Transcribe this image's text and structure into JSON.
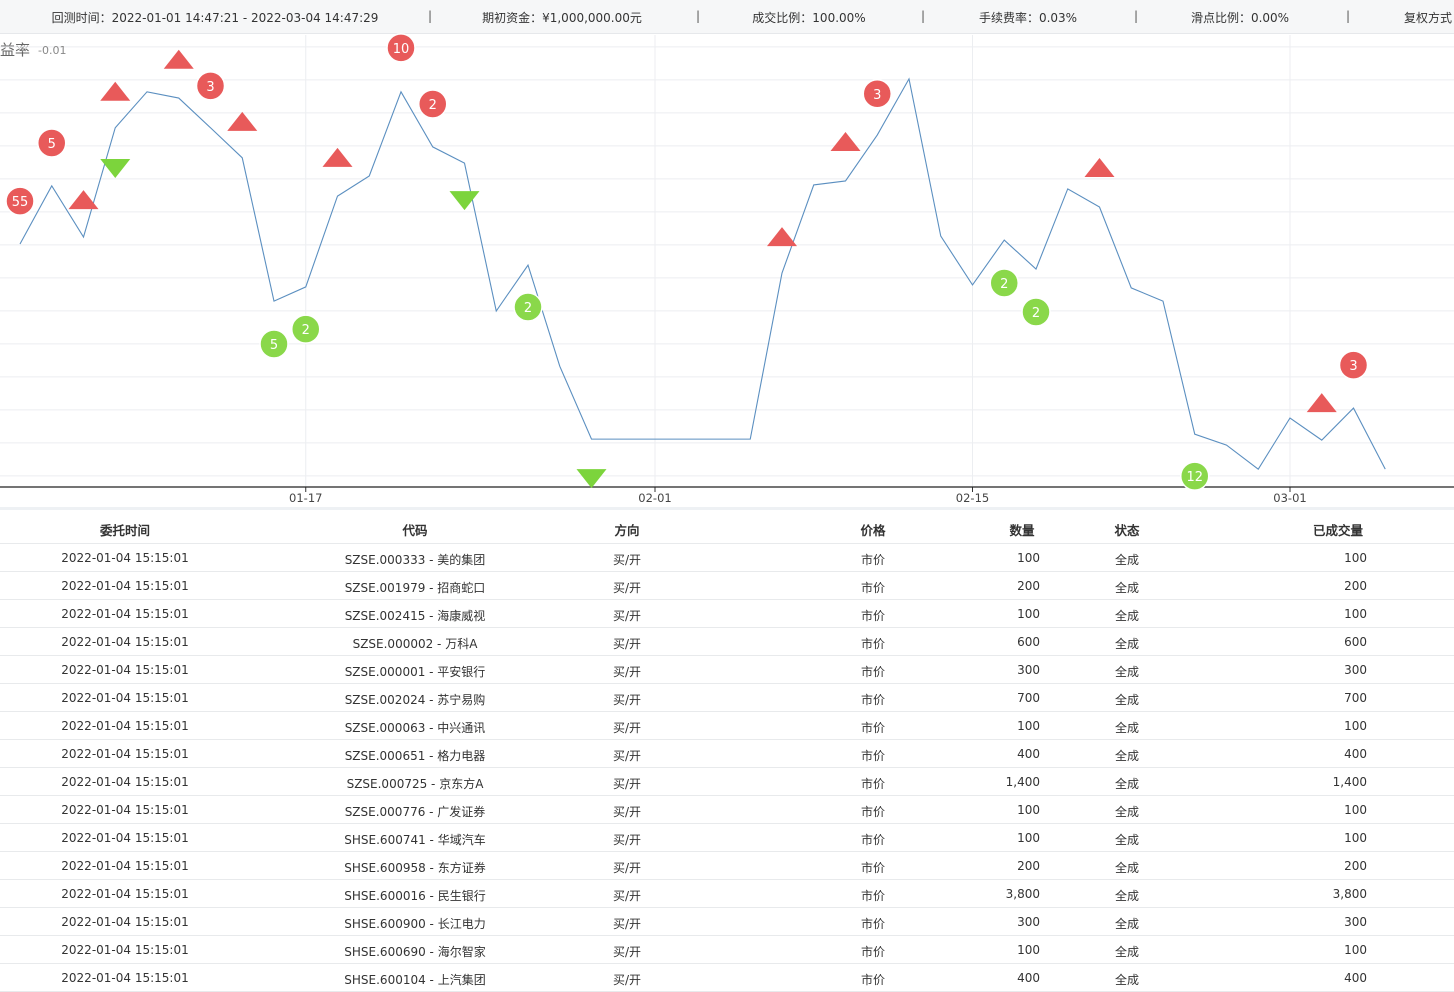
{
  "header": {
    "items": [
      "回测时间：2022-01-01 14:47:21 - 2022-03-04 14:47:29",
      "期初资金：¥1,000,000.00元",
      "成交比例：100.00%",
      "手续费率：0.03%",
      "滑点比例：0.00%",
      "复权方式"
    ]
  },
  "chart_data": {
    "type": "line",
    "y_label": "益率",
    "categories": [
      null,
      null,
      null,
      null,
      null,
      null,
      null,
      null,
      null,
      "01-17",
      null,
      null,
      null,
      null,
      null,
      null,
      null,
      null,
      null,
      null,
      "02-01",
      null,
      null,
      null,
      null,
      null,
      null,
      null,
      null,
      null,
      "02-15",
      null,
      null,
      null,
      null,
      null,
      null,
      null,
      null,
      null,
      "03-01",
      null,
      null,
      null
    ],
    "series": [
      {
        "color": "#5b8fc0",
        "values": [
          -0.01597,
          -0.01421,
          -0.01576,
          -0.01245,
          -0.01136,
          -0.01155,
          -0.01245,
          -0.01336,
          -0.0177,
          -0.01727,
          -0.01452,
          -0.01391,
          -0.01136,
          -0.01303,
          -0.01352,
          -0.018,
          -0.01661,
          -0.01967,
          -0.02188,
          -0.02188,
          -0.02188,
          -0.02188,
          -0.02188,
          -0.02188,
          -0.01685,
          -0.01418,
          -0.01406,
          -0.01267,
          -0.01097,
          -0.01573,
          -0.01721,
          -0.01585,
          -0.01673,
          -0.0143,
          -0.01485,
          -0.0173,
          -0.0177,
          -0.02173,
          -0.02206,
          -0.02279,
          -0.02124,
          -0.02191,
          -0.02094,
          -0.02279
        ]
      }
    ],
    "ylim": [
      -0.02333,
      -0.00964
    ],
    "yticks": [
      -0.01
    ],
    "markers": [
      {
        "x": 0,
        "y": -0.01467,
        "shape": "circle",
        "color": "#e85a5a",
        "label": "55"
      },
      {
        "x": 1,
        "y": -0.01291,
        "shape": "circle",
        "color": "#e85a5a",
        "label": "5"
      },
      {
        "x": 6,
        "y": -0.01118,
        "shape": "circle",
        "color": "#e85a5a",
        "label": "3"
      },
      {
        "x": 12,
        "y": -0.01003,
        "shape": "circle",
        "color": "#e85a5a",
        "label": "10"
      },
      {
        "x": 13,
        "y": -0.01173,
        "shape": "circle",
        "color": "#e85a5a",
        "label": "2"
      },
      {
        "x": 27,
        "y": -0.01142,
        "shape": "circle",
        "color": "#e85a5a",
        "label": "3"
      },
      {
        "x": 42,
        "y": -0.01964,
        "shape": "circle",
        "color": "#e85a5a",
        "label": "3"
      },
      {
        "x": 8,
        "y": -0.019,
        "shape": "circle",
        "color": "#8ad84a",
        "label": "5"
      },
      {
        "x": 9,
        "y": -0.01855,
        "shape": "circle",
        "color": "#8ad84a",
        "label": "2"
      },
      {
        "x": 16,
        "y": -0.01788,
        "shape": "circle",
        "color": "#8ad84a",
        "label": "2"
      },
      {
        "x": 31,
        "y": -0.01715,
        "shape": "circle",
        "color": "#8ad84a",
        "label": "2"
      },
      {
        "x": 32,
        "y": -0.01803,
        "shape": "circle",
        "color": "#8ad84a",
        "label": "2"
      },
      {
        "x": 37,
        "y": -0.023,
        "shape": "circle",
        "color": "#8ad84a",
        "label": "12"
      },
      {
        "x": 2,
        "y": -0.01464,
        "shape": "up",
        "color": "#e85a5a"
      },
      {
        "x": 3,
        "y": -0.01136,
        "shape": "up",
        "color": "#e85a5a"
      },
      {
        "x": 5,
        "y": -0.01039,
        "shape": "up",
        "color": "#e85a5a"
      },
      {
        "x": 7,
        "y": -0.01227,
        "shape": "up",
        "color": "#e85a5a"
      },
      {
        "x": 10,
        "y": -0.01336,
        "shape": "up",
        "color": "#e85a5a"
      },
      {
        "x": 24,
        "y": -0.01576,
        "shape": "up",
        "color": "#e85a5a"
      },
      {
        "x": 26,
        "y": -0.01288,
        "shape": "up",
        "color": "#e85a5a"
      },
      {
        "x": 34,
        "y": -0.01367,
        "shape": "up",
        "color": "#e85a5a"
      },
      {
        "x": 41,
        "y": -0.02079,
        "shape": "up",
        "color": "#e85a5a"
      },
      {
        "x": 3,
        "y": -0.01367,
        "shape": "down",
        "color": "#7cd43c"
      },
      {
        "x": 14,
        "y": -0.01464,
        "shape": "down",
        "color": "#7cd43c"
      },
      {
        "x": 18,
        "y": -0.02306,
        "shape": "down",
        "color": "#7cd43c"
      }
    ]
  },
  "table": {
    "columns": [
      "委托时间",
      "代码",
      "方向",
      "价格",
      "数量",
      "状态",
      "已成交量"
    ],
    "rows": [
      [
        "2022-01-04 15:15:01",
        "SZSE.000333 - 美的集团",
        "买/开",
        "市价",
        "100",
        "全成",
        "100"
      ],
      [
        "2022-01-04 15:15:01",
        "SZSE.001979 - 招商蛇口",
        "买/开",
        "市价",
        "200",
        "全成",
        "200"
      ],
      [
        "2022-01-04 15:15:01",
        "SZSE.002415 - 海康威视",
        "买/开",
        "市价",
        "100",
        "全成",
        "100"
      ],
      [
        "2022-01-04 15:15:01",
        "SZSE.000002 - 万科A",
        "买/开",
        "市价",
        "600",
        "全成",
        "600"
      ],
      [
        "2022-01-04 15:15:01",
        "SZSE.000001 - 平安银行",
        "买/开",
        "市价",
        "300",
        "全成",
        "300"
      ],
      [
        "2022-01-04 15:15:01",
        "SZSE.002024 - 苏宁易购",
        "买/开",
        "市价",
        "700",
        "全成",
        "700"
      ],
      [
        "2022-01-04 15:15:01",
        "SZSE.000063 - 中兴通讯",
        "买/开",
        "市价",
        "100",
        "全成",
        "100"
      ],
      [
        "2022-01-04 15:15:01",
        "SZSE.000651 - 格力电器",
        "买/开",
        "市价",
        "400",
        "全成",
        "400"
      ],
      [
        "2022-01-04 15:15:01",
        "SZSE.000725 - 京东方A",
        "买/开",
        "市价",
        "1,400",
        "全成",
        "1,400"
      ],
      [
        "2022-01-04 15:15:01",
        "SZSE.000776 - 广发证券",
        "买/开",
        "市价",
        "100",
        "全成",
        "100"
      ],
      [
        "2022-01-04 15:15:01",
        "SHSE.600741 - 华域汽车",
        "买/开",
        "市价",
        "100",
        "全成",
        "100"
      ],
      [
        "2022-01-04 15:15:01",
        "SHSE.600958 - 东方证券",
        "买/开",
        "市价",
        "200",
        "全成",
        "200"
      ],
      [
        "2022-01-04 15:15:01",
        "SHSE.600016 - 民生银行",
        "买/开",
        "市价",
        "3,800",
        "全成",
        "3,800"
      ],
      [
        "2022-01-04 15:15:01",
        "SHSE.600900 - 长江电力",
        "买/开",
        "市价",
        "300",
        "全成",
        "300"
      ],
      [
        "2022-01-04 15:15:01",
        "SHSE.600690 - 海尔智家",
        "买/开",
        "市价",
        "100",
        "全成",
        "100"
      ],
      [
        "2022-01-04 15:15:01",
        "SHSE.600104 - 上汽集团",
        "买/开",
        "市价",
        "400",
        "全成",
        "400"
      ]
    ]
  }
}
